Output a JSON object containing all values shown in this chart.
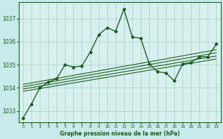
{
  "bg_color": "#c8eaea",
  "plot_bg_color": "#d8f0f0",
  "line_color": "#1a5c1a",
  "grid_color": "#b0d8d0",
  "title": "Graphe pression niveau de la mer (hPa)",
  "xlim": [
    -0.5,
    23.5
  ],
  "ylim": [
    1032.5,
    1037.7
  ],
  "yticks": [
    1033,
    1034,
    1035,
    1036,
    1037
  ],
  "xticks": [
    0,
    1,
    2,
    3,
    4,
    5,
    6,
    7,
    8,
    9,
    10,
    11,
    12,
    13,
    14,
    15,
    16,
    17,
    18,
    19,
    20,
    21,
    22,
    23
  ],
  "main_line_x": [
    0,
    1,
    2,
    3,
    4,
    5,
    6,
    7,
    8,
    9,
    10,
    11,
    12,
    13,
    14,
    15,
    16,
    17,
    18,
    19,
    20,
    21,
    22,
    23
  ],
  "main_line_y": [
    1032.7,
    1033.3,
    1034.0,
    1034.25,
    1034.4,
    1035.0,
    1034.9,
    1034.95,
    1035.55,
    1036.3,
    1036.6,
    1036.45,
    1037.4,
    1036.2,
    1036.15,
    1035.05,
    1034.7,
    1034.65,
    1034.3,
    1035.05,
    1035.1,
    1035.35,
    1035.35,
    1035.9
  ],
  "trend_lines": [
    {
      "x": [
        0,
        23
      ],
      "y": [
        1033.85,
        1035.25
      ]
    },
    {
      "x": [
        0,
        23
      ],
      "y": [
        1033.95,
        1035.38
      ]
    },
    {
      "x": [
        0,
        23
      ],
      "y": [
        1034.05,
        1035.52
      ]
    },
    {
      "x": [
        0,
        23
      ],
      "y": [
        1034.15,
        1035.65
      ]
    }
  ]
}
